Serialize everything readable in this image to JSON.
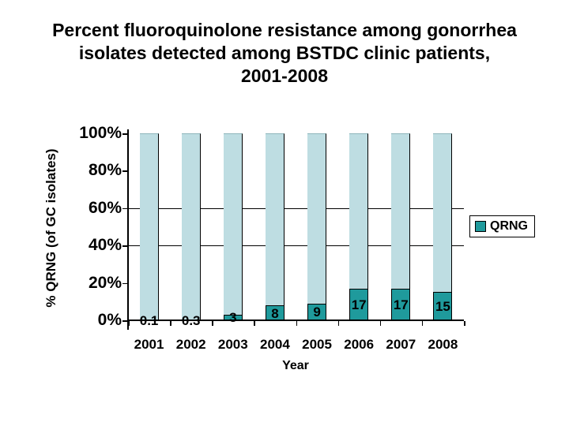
{
  "slide": {
    "title_lines": [
      "Percent fluoroquinolone resistance among gonorrhea",
      "isolates detected among BSTDC clinic patients,",
      "2001-2008"
    ]
  },
  "chart_data": {
    "type": "bar",
    "subtype": "stacked-to-100-background",
    "title": "Percent fluoroquinolone resistance among gonorrhea isolates detected among BSTDC clinic patients, 2001-2008",
    "xlabel": "Year",
    "ylabel": "% QRNG (of GC isolates)",
    "categories": [
      "2001",
      "2002",
      "2003",
      "2004",
      "2005",
      "2006",
      "2007",
      "2008"
    ],
    "series": [
      {
        "name": "QRNG",
        "values": [
          0.1,
          0.3,
          3,
          8,
          9,
          17,
          17,
          15
        ]
      }
    ],
    "data_labels": [
      "0.1",
      "0.3",
      "3",
      "8",
      "9",
      "17",
      "17",
      "15"
    ],
    "background_fill_to_100": true,
    "ylim": [
      0,
      100
    ],
    "yticks": [
      "0%",
      "20%",
      "40%",
      "60%",
      "80%",
      "100%"
    ],
    "gridlines_at_percent": [
      40,
      60
    ],
    "grid": "partial-horizontal",
    "legend": {
      "position": "right",
      "entries": [
        {
          "label": "QRNG",
          "color": "#1F9A9C"
        }
      ]
    },
    "colors": {
      "qrng_fill": "#1F9A9C",
      "background_bar_fill": "#BEDDE2",
      "axis": "#000000",
      "text": "#000000"
    }
  }
}
